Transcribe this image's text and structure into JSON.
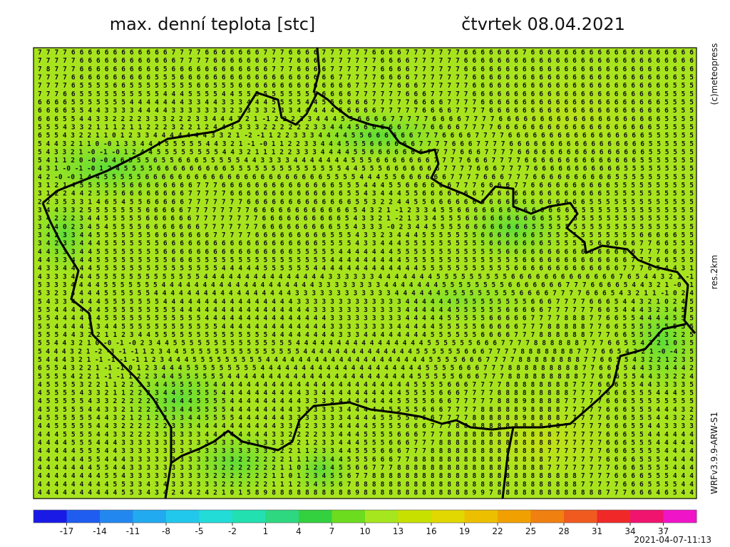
{
  "header": {
    "title": "max. denní teplota [stc]",
    "date": "čtvrtek 08.04.2021"
  },
  "side": {
    "copyright": "(c)meteopress",
    "resolution": "res.2km",
    "model": "WRFv3.9.9-ARW-S1"
  },
  "footer": {
    "run": "2021-04-07-11:13"
  },
  "grid": {
    "rows": [
      "7 7 7 7 6 6 6 6 6 6 6 6 6 6 6 6 7 7 7 7 6 6 6 6 6 6 6 7 7 7 6 6 6 6 7 7 7 7 7 7 6 6 6 6 7 7 7 7 7 7 7 6 6 6 6 6 6 6 7 6 6 6 6 6 6 6 6 6 6 6 6 6 6 6 6 6 6 6 6",
      "7 7 7 7 7 6 6 6 6 6 6 6 6 6 6 6 6 7 7 7 7 6 6 6 6 6 6 6 7 7 7 6 6 6 6 7 7 7 7 7 7 6 6 6 6 7 7 7 7 7 7 6 6 6 6 6 6 6 6 6 6 6 6 6 6 6 6 6 6 6 6 6 6 6 6 6 6 6 6",
      "7 8 7 7 7 6 6 6 6 6 6 6 6 6 6 5 6 6 6 6 6 6 6 6 6 6 6 6 7 7 7 6 6 6 6 7 7 7 7 7 7 6 6 6 6 7 7 7 7 7 7 6 6 6 6 6 6 6 6 6 6 6 6 6 6 6 6 6 6 6 6 6 6 6 6 6 6 6 6",
      "7 7 7 7 6 6 6 6 6 6 6 6 6 6 5 5 5 6 6 6 6 6 6 6 6 6 6 6 6 6 6 6 6 6 6 6 7 7 7 7 7 6 6 6 6 7 7 7 7 7 7 7 6 6 6 6 6 6 6 6 6 6 6 6 6 6 6 6 6 6 6 6 6 6 6 6 6 5 5",
      "7 7 7 7 6 5 5 5 5 6 6 5 5 5 5 5 5 5 5 6 6 5 5 5 6 6 6 6 6 6 6 6 6 6 6 6 6 6 7 7 7 7 7 6 6 6 7 7 7 7 7 7 6 6 6 6 6 6 6 6 6 6 6 6 6 6 6 6 6 6 6 6 6 6 6 6 5 5 5",
      "7 7 7 6 6 5 5 5 5 5 5 5 5 5 5 4 4 4 5 5 5 5 4 4 5 5 5 5 5 5 5 5 5 6 6 6 6 6 7 7 7 7 7 7 6 6 6 7 7 7 7 7 6 6 6 6 6 6 6 6 6 6 6 6 6 6 6 6 6 6 6 6 6 6 6 5 5 5 5",
      "6 6 6 6 5 5 5 5 5 5 5 4 4 4 4 4 4 4 3 3 4 4 3 3 3 4 4 4 5 5 5 5 4 4 5 5 6 6 6 6 7 7 7 7 7 6 6 6 6 7 7 7 7 6 6 6 6 6 6 6 6 6 6 6 6 6 6 6 6 6 6 6 6 6 6 5 5 5 5",
      "6 6 6 6 5 5 4 4 3 3 3 3 4 4 4 4 3 3 3 3 3 3 3 2 3 3 3 3 2 3 3 4 4 4 4 4 5 6 6 6 6 7 7 7 7 7 6 6 6 6 7 7 7 7 6 6 6 6 6 6 6 6 6 6 6 6 6 6 6 6 6 6 6 6 6 6 5 5 5",
      "6 6 6 5 5 4 4 3 3 2 2 2 2 3 3 3 2 2 2 3 3 4 4 4 3 2 1 -1 2 2 2 3 3 4 4 4 5 5 6 6 6 6 7 7 7 7 7 6 6 6 6 7 7 7 7 6 6 6 6 6 6 6 6 6 6 6 6 6 6 6 6 6 6 6 6 5 5 5 5",
      "5 5 5 4 3 3 2 1 1 1 2 1 1 2 2 2 3 2 2 1 2 4 4 3 3 3 3 2 2 2 2 2 2 3 3 4 4 4 5 6 6 6 6 6 7 7 7 6 6 6 6 7 7 7 7 6 6 6 6 6 6 6 6 6 6 6 6 6 6 6 6 6 6 6 5 5 5 5 5",
      "6 5 5 4 3 2 2 1 1 0 1 2 3 3 4 4 4 4 4 4 4 3 3 2 1 -2 -1 1 2 2 3 3 3 4 4 4 4 5 5 6 6 6 6 6 6 7 7 7 6 6 6 6 7 7 7 7 6 6 6 6 6 6 6 6 6 6 6 6 6 6 6 6 6 5 5 5 5 5 5",
      "5 4 4 3 2 1 1 0 -0 1 3 3 4 4 4 5 5 5 5 5 4 4 3 2 1 -1 -0 1 1 2 2 3 3 4 4 4 5 5 5 6 6 6 6 6 6 7 7 7 7 6 6 6 7 7 7 7 6 6 6 6 6 6 6 6 6 6 6 6 6 6 6 6 6 5 5 5 5 5 5",
      "5 4 3 3 2 1 -0 -1 -0 1 2 4 4 5 5 5 5 5 5 5 5 4 4 3 2 1 1 1 2 2 3 3 3 4 4 4 4 5 5 6 6 6 6 6 6 6 7 7 7 7 6 6 6 7 7 7 7 6 6 6 6 6 6 6 6 6 6 6 6 6 6 6 6 5 5 5 5 5 5",
      "5 4 1 1 2 0 -0 -0 4 6 5 5 5 6 5 5 6 6 6 5 5 5 5 5 4 4 3 3 3 3 4 4 4 4 4 4 4 5 5 5 6 6 6 6 6 6 6 7 7 7 7 6 6 6 7 7 7 7 6 6 6 6 6 6 6 6 6 6 6 6 6 6 5 5 5 5 5 5 5",
      "4 3 1 -0 -1 -0 1 2 4 5 5 5 5 6 6 6 6 6 6 6 6 6 5 5 5 5 5 5 5 5 5 5 5 5 5 5 4 4 5 5 5 6 6 6 6 6 6 6 7 7 7 7 6 6 6 7 7 7 7 6 6 6 6 6 6 6 6 6 6 6 5 5 5 5 5 5 5 5 5",
      "4 2 -0 -0 1 4 4 5 5 5 5 5 6 6 6 6 6 6 6 6 6 6 6 6 6 6 6 6 6 6 6 6 6 6 5 5 5 5 4 4 4 5 5 6 6 6 6 6 6 7 7 7 7 6 6 6 7 7 7 6 6 6 6 6 6 6 6 6 6 5 5 5 5 5 5 5 5 5 5",
      "3 1 2 1 4 5 5 5 5 5 5 6 6 6 6 6 6 6 6 7 7 7 6 6 6 6 6 6 6 6 6 6 6 6 6 6 5 5 5 4 4 4 5 5 6 6 6 6 6 6 7 7 7 6 6 6 6 7 7 6 6 6 6 6 6 6 6 6 6 5 5 5 5 5 5 5 5 5 5",
      "3 1 2 2 4 4 2 5 5 5 6 6 6 6 6 6 6 6 7 7 7 7 7 6 6 6 6 6 6 6 6 6 6 6 6 6 6 5 5 4 3 4 4 4 5 5 6 6 6 6 6 6 6 7 6 6 6 6 6 6 6 6 6 6 6 6 6 6 5 5 5 5 5 5 5 5 5 5 5",
      "2 2 3 5 3 3 1 4 6 5 4 5 5 6 6 6 6 6 7 7 7 7 7 7 7 6 6 6 6 6 6 6 6 6 6 6 6 6 5 5 3 2 2 4 4 5 5 6 6 6 6 6 6 6 6 6 6 6 6 6 6 6 6 6 6 6 5 5 5 5 5 5 5 5 5 5 5 5 5",
      "3 4 4 3 3 2 5 5 5 5 5 5 5 6 6 6 6 6 7 7 7 7 7 7 7 7 6 6 6 6 6 6 6 6 6 6 6 6 5 4 3 2 1 -1 2 3 3 4 5 5 6 6 6 6 6 6 6 6 6 6 6 6 6 6 5 5 5 5 5 5 5 5 5 5 5 5 5 5 5",
      "3 4 2 2 2 3 4 4 5 5 5 5 5 6 6 6 6 6 6 7 7 7 7 7 7 7 7 6 6 6 6 6 6 6 6 6 6 5 4 3 3 2 1 -2 1 3 3 4 5 5 5 6 6 6 6 6 6 6 6 6 6 5 5 5 5 5 5 5 5 5 5 5 5 5 5 5 5 5 5",
      "3 4 4 0 2 3 4 5 4 5 5 5 5 6 6 6 6 6 6 6 7 7 7 7 7 7 7 6 6 6 6 6 6 6 6 6 5 5 4 3 3 3 -0 2 3 4 4 5 5 5 5 6 6 6 6 6 6 6 6 5 5 5 5 5 5 5 5 5 5 5 5 5 5 5 5 5 5 5 5",
      "3 4 2 3 3 4 4 5 5 5 5 5 5 5 6 6 6 6 6 6 6 7 7 7 7 7 6 6 6 6 6 6 6 6 6 5 5 5 4 3 3 2 3 4 4 4 5 5 5 5 5 5 5 6 6 6 6 6 6 6 5 5 5 5 5 5 5 5 5 5 5 5 6 6 6 6 6 5 5",
      "3 4 2 3 3 4 4 4 5 5 5 5 5 5 5 6 6 6 6 6 6 6 6 6 6 6 6 6 6 6 6 6 6 6 5 5 5 5 4 3 3 4 4 4 5 5 5 5 5 5 5 5 5 5 6 6 6 6 6 6 6 5 5 5 5 5 5 6 6 6 6 6 7 7 6 6 5 5 5",
      "4 4 3 3 3 4 4 5 5 5 5 5 5 5 5 6 6 6 6 6 6 6 6 6 6 6 6 6 6 6 6 5 5 5 5 5 4 4 4 4 4 4 4 5 5 5 5 5 5 5 5 5 5 5 5 5 6 6 6 6 6 6 6 6 6 6 6 6 6 6 6 6 7 7 7 6 6 5 5",
      "4 4 3 3 4 4 4 5 5 5 5 5 5 5 5 5 6 6 6 5 5 5 5 5 5 5 5 5 5 5 5 5 5 5 5 4 4 4 4 4 4 4 4 4 5 5 5 5 5 5 5 5 5 5 5 5 5 5 6 6 6 6 6 6 6 6 6 6 6 6 6 7 7 7 6 6 5 5 5",
      "4 3 3 4 4 4 4 5 5 5 5 5 5 5 5 5 5 5 5 5 5 5 4 4 4 4 4 5 5 5 5 5 5 4 4 4 4 4 4 4 4 4 4 4 4 4 5 5 5 5 5 5 5 5 5 5 5 6 6 6 6 6 6 6 6 6 6 6 6 6 7 7 7 6 5 4 4 3 1",
      "4 3 3 3 4 4 4 5 5 5 5 5 5 5 5 5 5 5 5 5 4 4 4 4 4 4 4 4 4 4 4 4 4 4 4 3 3 3 3 3 3 4 4 4 4 4 4 4 5 5 5 5 5 5 5 5 5 6 6 6 6 6 6 6 6 6 6 6 6 6 7 6 5 4 4 3 2 1 -1",
      "5 3 3 3 4 4 4 4 5 5 5 5 5 5 5 4 4 4 4 4 4 4 4 4 4 4 4 4 4 4 4 4 4 4 3 3 3 3 3 3 3 3 4 4 4 4 4 4 4 5 5 5 5 5 5 5 5 6 6 6 6 6 6 6 7 7 7 6 6 6 6 5 4 4 3 2 1 -0 -1",
      "5 3 2 3 4 4 4 4 5 5 5 5 5 5 4 4 4 4 4 4 4 4 4 4 4 4 4 4 4 4 4 3 3 3 3 3 3 3 3 3 3 3 3 4 4 4 4 4 4 5 5 5 5 5 5 5 5 5 6 6 6 6 7 7 7 7 6 6 6 5 4 3 2 1 1 -1 0 2 4",
      "5 4 3 3 4 4 4 4 5 5 5 5 5 5 5 4 4 4 4 4 4 4 4 4 4 4 4 4 4 4 4 3 3 3 3 3 3 3 3 3 3 3 3 3 4 4 4 4 4 4 5 5 5 5 5 5 5 5 5 6 6 6 7 7 7 7 6 6 6 5 4 4 3 2 1 0 2 4 5",
      "5 5 4 4 4 4 4 4 5 5 5 5 5 5 5 5 5 4 4 4 4 4 4 4 4 4 4 4 4 4 4 4 4 3 3 3 3 3 3 3 3 3 3 3 4 4 4 4 4 4 5 5 5 5 5 5 6 6 6 6 6 7 7 7 7 7 7 6 6 5 4 4 4 3 2 3 4 5 5",
      "5 5 4 4 4 4 4 4 5 5 5 5 5 5 5 5 5 5 5 5 4 4 4 4 4 4 4 4 4 4 4 4 4 4 4 3 3 3 3 3 3 3 3 3 4 4 4 4 4 5 5 5 5 5 6 6 6 6 6 7 7 7 7 8 8 8 7 7 6 6 5 5 4 4 4 4 5 5 5",
      "5 5 4 4 4 4 3 3 4 4 5 5 5 5 5 5 5 5 5 5 5 5 4 4 4 4 4 4 4 4 4 4 4 4 4 3 3 3 3 3 3 3 3 4 4 4 4 4 5 5 5 5 5 6 6 6 6 6 7 7 7 8 8 8 8 8 7 7 6 6 5 5 5 5 5 5 5 5 5",
      "5 5 5 4 4 3 2 2 1 1 2 3 4 4 5 5 5 5 5 5 5 5 5 5 5 5 5 5 4 4 4 4 4 4 4 4 3 3 3 4 4 4 4 4 4 4 4 5 5 5 5 5 5 6 6 6 6 7 7 7 8 8 8 8 8 8 7 7 7 6 6 5 5 5 4 3 2 2 5",
      "5 5 4 4 3 2 1 0 -0 -1 -0 2 3 4 4 5 5 5 5 5 5 5 5 5 5 5 5 5 5 5 4 4 4 4 4 4 4 4 4 4 4 4 4 4 4 4 5 5 5 5 5 5 6 6 6 7 7 7 7 8 8 8 8 8 8 7 7 7 6 6 5 5 4 3 2 1 0 3 5",
      "5 4 4 4 3 2 1 -2 -3 -1 -1 1 2 3 4 4 5 5 5 5 5 5 5 5 5 5 5 5 5 5 5 4 4 4 4 4 4 4 4 4 4 4 4 4 4 5 5 5 5 5 5 6 6 6 7 7 7 7 8 8 8 8 8 8 8 7 7 7 6 6 5 4 3 2 1 -0 -4 2 5",
      "5 4 4 4 3 2 1 -1 -1 -1 -1 1 2 3 4 4 4 5 5 5 5 5 5 5 5 5 4 4 4 4 4 4 4 4 4 4 4 4 4 4 4 4 4 4 4 4 5 5 5 5 6 6 6 7 7 7 7 8 8 8 8 8 8 8 8 7 7 6 6 5 5 4 3 2 2 1 2 3 5",
      "6 5 5 4 3 2 2 1 -1 -1 0 1 2 3 4 4 4 5 5 5 5 5 5 5 5 5 4 4 4 4 4 4 4 4 4 4 4 4 4 4 4 4 4 4 4 4 5 5 5 5 6 6 6 7 7 7 8 8 8 8 8 8 8 8 8 7 7 6 6 5 5 4 4 3 3 4 4 4 2",
      "5 5 5 5 4 2 2 1 -1 -1 1 2 2 3 4 4 5 5 5 5 5 5 4 4 4 4 4 4 4 4 4 4 4 4 4 4 4 4 4 4 4 4 4 4 4 5 5 5 5 5 6 6 6 7 7 7 8 8 8 8 8 8 8 8 8 7 7 6 6 6 5 5 4 4 3 3 2 2 4",
      "4 5 5 5 5 3 2 2 1 1 2 2 3 3 4 4 5 5 5 5 5 4 4 4 4 4 4 4 4 4 4 4 4 4 4 4 4 4 4 4 4 4 4 4 4 5 5 5 5 6 6 6 7 7 7 7 8 8 8 8 8 8 8 8 7 7 7 6 6 6 5 5 4 4 3 3 3 3 5",
      "4 5 5 5 5 4 3 3 2 1 1 2 2 2 3 4 4 5 5 5 5 5 4 4 4 4 4 4 4 4 4 4 3 3 4 4 4 4 4 4 4 4 4 4 5 5 5 5 6 6 6 7 7 7 7 8 8 8 8 8 8 8 8 8 7 7 7 7 6 6 6 5 5 5 4 4 4 5 5",
      "4 5 5 5 5 5 4 3 3 2 2 2 2 2 2 3 4 4 4 5 5 5 5 4 4 4 4 4 4 4 4 4 3 3 3 3 4 4 4 4 4 4 4 5 5 5 5 6 6 6 7 7 7 7 7 8 8 8 9 8 8 8 8 7 7 7 7 7 6 6 6 5 5 5 5 5 5 5 5",
      "4 5 5 5 5 5 4 4 3 3 2 1 2 2 2 3 3 4 4 5 5 5 5 4 4 4 4 4 4 4 4 3 3 3 3 3 3 4 4 4 4 4 5 5 5 5 6 6 6 7 7 7 7 8 8 8 8 8 9 8 8 8 8 7 7 7 7 7 6 6 6 5 5 5 4 4 4 3 2",
      "4 5 5 5 5 5 5 4 4 3 2 1 2 1 2 2 3 3 4 4 5 5 5 5 4 4 4 4 4 4 3 3 3 3 3 3 3 4 4 4 4 5 5 5 5 6 6 6 7 7 7 7 8 8 8 8 8 8 9 8 8 8 8 7 7 7 7 7 6 6 6 5 5 5 4 4 3 2 2",
      "4 4 5 5 5 5 5 4 4 3 2 2 2 2 2 2 3 3 3 4 4 4 4 4 4 4 4 4 4 3 3 3 2 3 3 3 4 4 4 4 5 5 5 5 6 6 6 7 7 7 8 8 8 8 8 8 8 8 8 8 8 8 8 7 7 7 7 7 6 6 6 5 5 4 4 3 3 3 3",
      "4 4 4 5 5 5 5 4 4 3 3 2 2 2 3 3 3 3 3 3 4 4 4 4 4 4 4 4 3 3 2 2 2 2 3 3 4 4 4 5 5 5 5 6 6 6 7 7 7 8 8 8 8 8 8 8 8 8 8 8 8 8 7 7 7 7 7 7 6 6 6 5 5 4 4 4 4 4 4",
      "4 4 4 4 5 5 5 4 4 4 3 3 3 3 3 3 3 3 3 3 3 3 3 3 3 3 3 3 3 3 2 2 1 2 3 3 4 4 4 5 5 5 6 6 6 7 7 7 8 8 8 8 8 8 8 8 8 8 8 8 8 8 7 7 7 7 7 7 6 6 6 5 5 5 4 4 4 4 4",
      "4 4 4 4 4 5 5 5 4 4 3 3 3 3 3 3 3 3 3 3 3 3 3 3 3 3 3 3 3 2 2 1 1 2 3 3 4 4 5 5 5 6 6 6 7 7 7 8 8 8 8 8 8 8 8 8 8 8 8 8 8 7 7 7 7 7 7 7 6 6 6 5 5 5 5 4 4 4 4",
      "4 4 4 4 4 4 5 5 4 4 4 3 3 3 3 3 3 3 3 3 3 3 3 3 2 2 2 2 2 2 1 1 1 2 3 4 4 5 5 5 6 6 6 7 7 8 8 8 8 8 8 8 8 8 8 8 8 8 8 8 8 7 7 7 7 7 7 7 6 6 6 6 5 5 5 4 4 4 4",
      "4 4 4 4 4 4 4 5 5 4 4 3 3 3 3 3 3 3 3 3 3 3 2 2 2 2 2 2 2 1 1 0 1 2 3 4 5 5 6 6 7 7 7 8 8 8 8 8 8 8 8 8 8 8 8 8 8 8 8 8 8 7 7 7 7 7 7 7 7 6 6 6 5 5 5 5 4 4 4",
      "4 4 4 4 4 4 4 4 5 5 4 3 3 3 3 3 3 3 3 3 3 2 2 2 2 2 2 2 1 1 0 1 2 3 4 5 5 6 7 7 8 8 8 8 8 8 8 8 8 8 8 8 8 8 8 8 8 8 8 8 8 8 8 8 8 7 7 7 7 6 6 6 6 5 5 5 4 4 4",
      "4 4 4 4 4 4 4 4 4 5 5 3 3 4 3 4 3 3 3 3 3 3 2 2 2 2 2 2 1 1 1 2 3 4 5 5 6 7 8 8 8 8 8 8 8 8 8 8 8 8 8 8 8 8 8 8 8 8 8 8 8 8 8 8 8 7 7 7 7 7 6 6 6 5 5 5 5 4 4",
      "4 4 4 4 4 4 4 4 4 4 5 5 3 4 3 4 2 4 4 2 4 2 1 0 1 5 8 9 8 8 8 8 8 8 8 8 8 8 9 8 8 8 8 8 8 8 8 8 8 8 8 8 9 9 7 8 8 8 8 8 8 8 8 8 8 8 8 8 7 7 7 6 6 6 4 6 5 4 4"
    ]
  },
  "colorbar": {
    "range": [
      -20,
      40
    ],
    "ticks": [
      -17,
      -14,
      -11,
      -8,
      -5,
      -2,
      1,
      4,
      7,
      10,
      13,
      16,
      19,
      22,
      25,
      28,
      31,
      34,
      37
    ],
    "colors": [
      "#1a1ae6",
      "#1f5cf0",
      "#2288f0",
      "#22aaf0",
      "#22c8ec",
      "#22dcd8",
      "#22e0b0",
      "#2ed880",
      "#33d040",
      "#6cdc1e",
      "#a6e61e",
      "#c8e000",
      "#e0d800",
      "#ecc000",
      "#f0a000",
      "#f08010",
      "#f05a1e",
      "#f02828",
      "#f0146e",
      "#f014c8"
    ]
  }
}
